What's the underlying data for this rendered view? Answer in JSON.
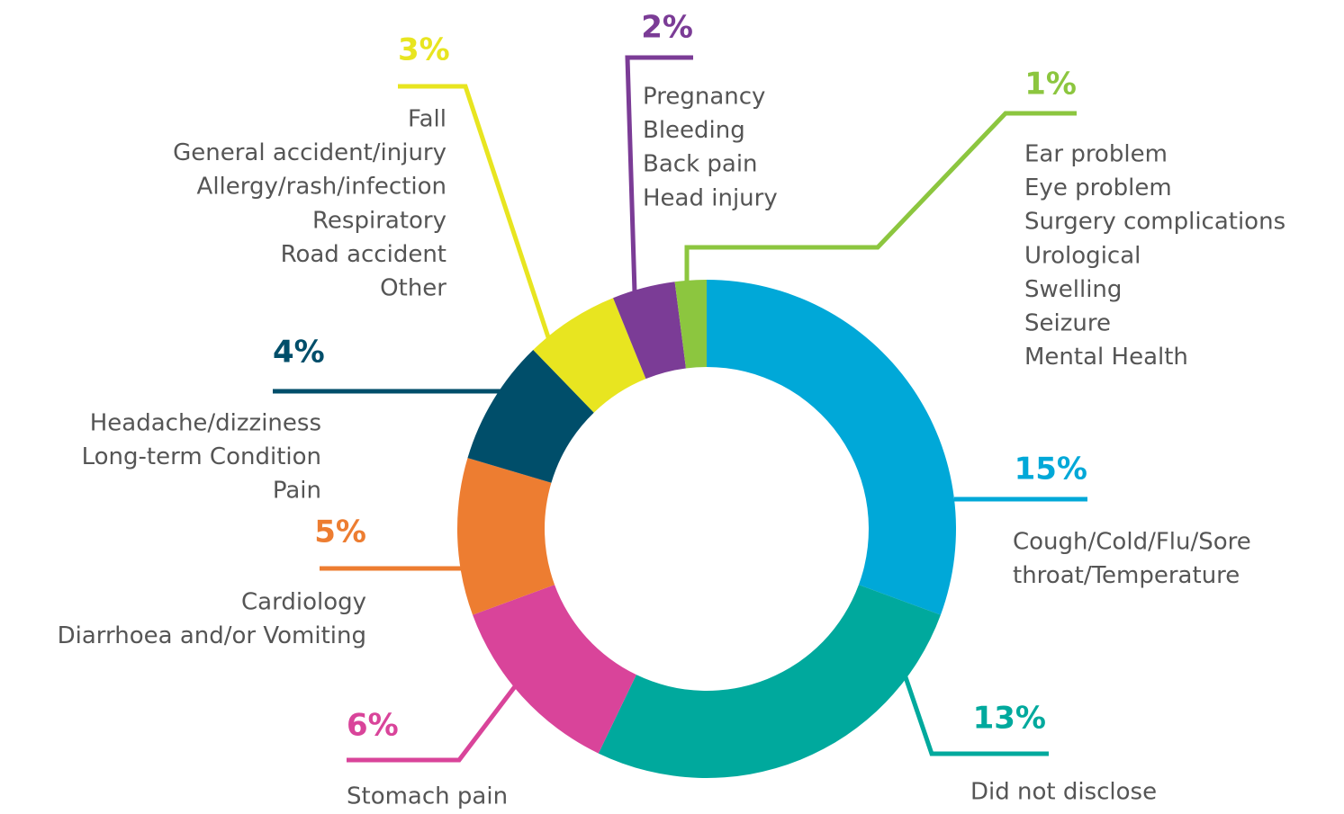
{
  "chart_data": {
    "type": "pie",
    "donut": true,
    "values": [
      15,
      13,
      6,
      5,
      4,
      3,
      2,
      1
    ],
    "value_labels": [
      "15%",
      "13%",
      "6%",
      "5%",
      "4%",
      "3%",
      "2%",
      "1%"
    ],
    "colors": [
      "#00a8d8",
      "#00a99d",
      "#d9449a",
      "#ed7d31",
      "#004e6a",
      "#e8e520",
      "#7b3c96",
      "#8cc63f"
    ],
    "categories": [
      [
        "Cough/Cold/Flu/Sore",
        "throat/Temperature"
      ],
      [
        "Did not disclose"
      ],
      [
        "Stomach pain"
      ],
      [
        "Cardiology",
        "Diarrhoea and/or Vomiting"
      ],
      [
        "Headache/dizziness",
        "Long-term Condition",
        "Pain"
      ],
      [
        "Fall",
        "General accident/injury",
        "Allergy/rash/infection",
        "Respiratory",
        "Road accident",
        "Other"
      ],
      [
        "Pregnancy",
        "Bleeding",
        "Back pain",
        "Head injury"
      ],
      [
        "Ear problem",
        "Eye problem",
        "Surgery complications",
        "Urological",
        "Swelling",
        "Seizure",
        "Mental Health"
      ]
    ]
  }
}
